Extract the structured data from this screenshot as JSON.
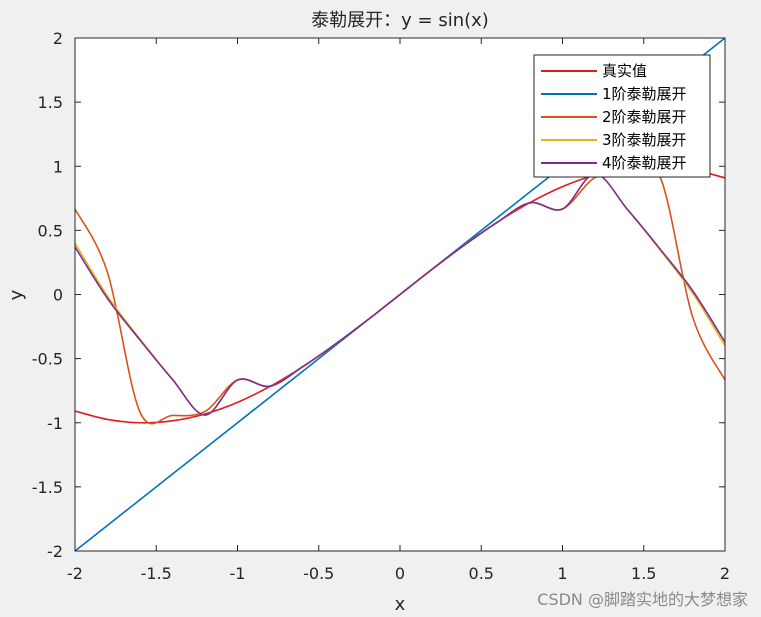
{
  "chart_data": {
    "type": "line",
    "title": "泰勒展开：y = sin(x)",
    "xlabel": "x",
    "ylabel": "y",
    "xlim": [
      -2,
      2
    ],
    "ylim": [
      -2,
      2
    ],
    "xticks": [
      "-2",
      "-1.5",
      "-1",
      "-0.5",
      "0",
      "0.5",
      "1",
      "1.5",
      "2"
    ],
    "yticks": [
      "-2",
      "-1.5",
      "-1",
      "-0.5",
      "0",
      "0.5",
      "1",
      "1.5",
      "2"
    ],
    "grid": false,
    "legend_position": "top-right",
    "x": [
      -2.0,
      -1.8,
      -1.6,
      -1.4,
      -1.2,
      -1.0,
      -0.8,
      -0.6,
      -0.4,
      -0.2,
      0.0,
      0.2,
      0.4,
      0.6,
      0.8,
      1.0,
      1.2,
      1.4,
      1.6,
      1.8,
      2.0
    ],
    "series": [
      {
        "name": "真实值",
        "color": "#e31a1c",
        "values": [
          -0.909,
          -0.974,
          -1.0,
          -0.985,
          -0.932,
          -0.841,
          -0.717,
          -0.565,
          -0.389,
          -0.199,
          0.0,
          0.199,
          0.389,
          0.565,
          0.717,
          0.841,
          0.932,
          0.985,
          1.0,
          0.974,
          0.909
        ]
      },
      {
        "name": "1阶泰勒展开",
        "color": "#0072bd",
        "values": [
          -2.0,
          -1.8,
          -1.6,
          -1.4,
          -1.2,
          -1.0,
          -0.8,
          -0.6,
          -0.4,
          -0.2,
          0.0,
          0.2,
          0.4,
          0.6,
          0.8,
          1.0,
          1.2,
          1.4,
          1.6,
          1.8,
          2.0
        ]
      },
      {
        "name": "2阶泰勒展开",
        "color": "#d95319",
        "values": [
          0.667,
          0.172,
          -0.917,
          -0.943,
          -0.912,
          -0.667,
          -0.715,
          -0.564,
          -0.389,
          -0.199,
          0.0,
          0.199,
          0.389,
          0.564,
          0.715,
          0.667,
          0.912,
          0.943,
          0.917,
          -0.172,
          -0.667
        ]
      },
      {
        "name": "3阶泰勒展开",
        "color": "#edb120",
        "values": [
          0.4,
          -0.012,
          -0.348,
          -0.661,
          -0.941,
          -0.667,
          -0.715,
          -0.564,
          -0.389,
          -0.199,
          0.0,
          0.199,
          0.389,
          0.564,
          0.715,
          0.667,
          0.941,
          0.661,
          0.348,
          0.012,
          -0.4
        ]
      },
      {
        "name": "4阶泰勒展开",
        "color": "#7e2f8e",
        "values": [
          0.371,
          -0.031,
          -0.355,
          -0.663,
          -0.94,
          -0.667,
          -0.715,
          -0.564,
          -0.389,
          -0.199,
          0.0,
          0.199,
          0.389,
          0.564,
          0.715,
          0.667,
          0.94,
          0.663,
          0.355,
          0.031,
          -0.371
        ]
      }
    ]
  },
  "watermark": "CSDN @脚踏实地的大梦想家"
}
